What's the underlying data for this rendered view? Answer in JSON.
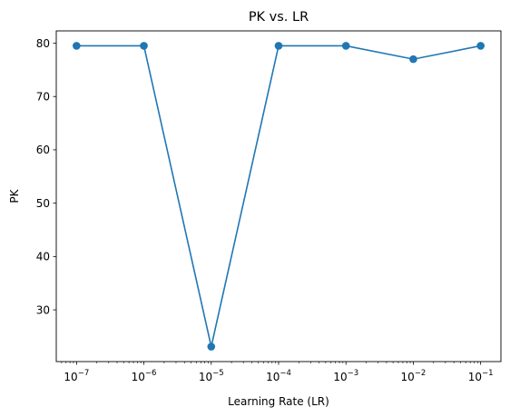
{
  "chart_data": {
    "type": "line",
    "title": "PK vs. LR",
    "xlabel": "Learning Rate (LR)",
    "ylabel": "PK",
    "x_scale": "log",
    "x_ticks": [
      {
        "value": 1e-07,
        "base": "10",
        "exp": "−7"
      },
      {
        "value": 1e-06,
        "base": "10",
        "exp": "−6"
      },
      {
        "value": 1e-05,
        "base": "10",
        "exp": "−5"
      },
      {
        "value": 0.0001,
        "base": "10",
        "exp": "−4"
      },
      {
        "value": 0.001,
        "base": "10",
        "exp": "−3"
      },
      {
        "value": 0.01,
        "base": "10",
        "exp": "−2"
      },
      {
        "value": 0.1,
        "base": "10",
        "exp": "−1"
      }
    ],
    "y_ticks": [
      30,
      40,
      50,
      60,
      70,
      80
    ],
    "xlim": [
      5e-08,
      0.2
    ],
    "ylim": [
      20.3,
      82.3
    ],
    "grid": false,
    "series": [
      {
        "color": "#1f77b4",
        "x": [
          1e-07,
          1e-06,
          1e-05,
          0.0001,
          0.001,
          0.01,
          0.1
        ],
        "y": [
          79.5,
          79.5,
          23.1,
          79.5,
          79.5,
          77.0,
          79.5
        ]
      }
    ]
  }
}
